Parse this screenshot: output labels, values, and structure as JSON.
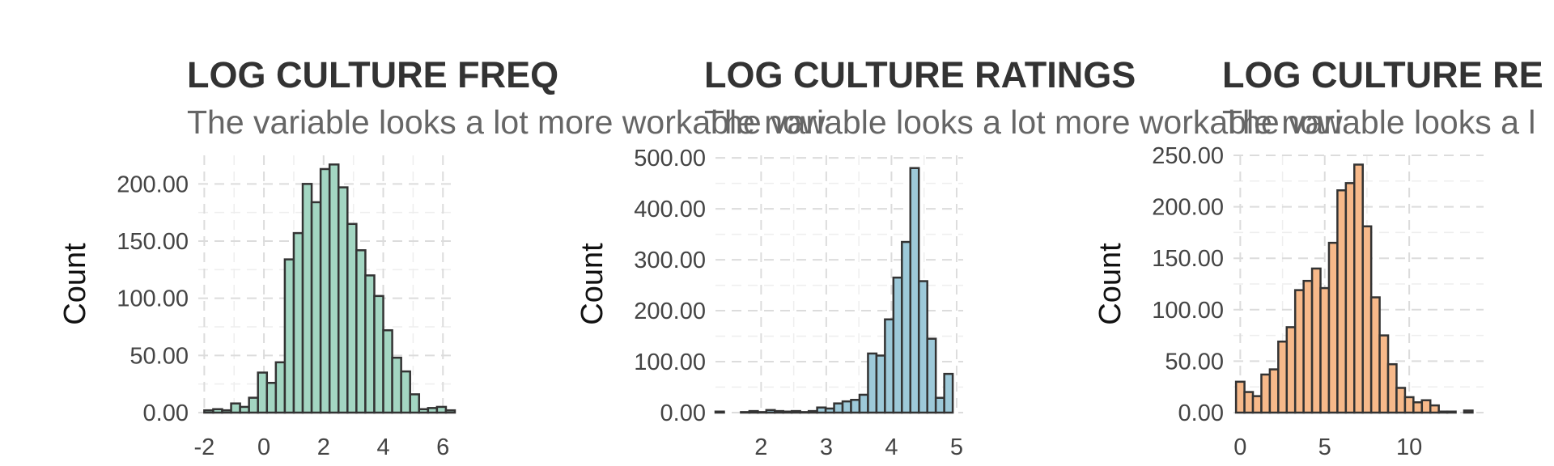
{
  "chart_data": [
    {
      "type": "bar",
      "title": "LOG CULTURE FREQ",
      "subtitle": "The variable looks a lot more workable now",
      "xlabel": "",
      "ylabel": "Count",
      "color": "#a3d6c2",
      "xlim": [
        -2.2,
        6.4
      ],
      "ylim": [
        0,
        225
      ],
      "xticks": [
        "-2",
        "0",
        "2",
        "4",
        "6"
      ],
      "xtick_values": [
        -2,
        0,
        2,
        4,
        6
      ],
      "yticks": [
        "0.00",
        "50.00",
        "100.00",
        "150.00",
        "200.00"
      ],
      "ytick_values": [
        0,
        50,
        100,
        150,
        200
      ],
      "bin_width": 0.3,
      "bin_start": -2.0,
      "values": [
        2,
        3,
        2,
        8,
        5,
        13,
        35,
        26,
        44,
        134,
        157,
        200,
        184,
        213,
        217,
        197,
        165,
        142,
        120,
        102,
        72,
        48,
        36,
        16,
        3,
        4,
        5,
        2
      ]
    },
    {
      "type": "bar",
      "title": "LOG CULTURE RATINGS",
      "subtitle": "The variable looks a lot more workable now",
      "xlabel": "",
      "ylabel": "Count",
      "color": "#9dc9d9",
      "xlim": [
        1.3,
        5.1
      ],
      "ylim": [
        0,
        505
      ],
      "xticks": [
        "2",
        "3",
        "4",
        "5"
      ],
      "xtick_values": [
        2,
        3,
        4,
        5
      ],
      "yticks": [
        "0.00",
        "100.00",
        "200.00",
        "300.00",
        "400.00",
        "500.00"
      ],
      "ytick_values": [
        0,
        100,
        200,
        300,
        400,
        500
      ],
      "bin_width": 0.13,
      "bin_start": 1.3,
      "values": [
        2,
        0,
        0,
        1,
        3,
        1,
        5,
        3,
        2,
        3,
        1,
        3,
        10,
        8,
        18,
        22,
        25,
        35,
        116,
        112,
        183,
        265,
        335,
        480,
        258,
        145,
        29,
        76
      ]
    },
    {
      "type": "bar",
      "title": "LOG CULTURE RE",
      "subtitle": "The variable looks a l",
      "xlabel": "",
      "ylabel": "Count",
      "color": "#f7b98a",
      "xlim": [
        -0.4,
        14.4
      ],
      "ylim": [
        0,
        250
      ],
      "xticks": [
        "0",
        "5",
        "10"
      ],
      "xtick_values": [
        0,
        5,
        10
      ],
      "yticks": [
        "0.00",
        "50.00",
        "100.00",
        "150.00",
        "200.00",
        "250.00"
      ],
      "ytick_values": [
        0,
        50,
        100,
        150,
        200,
        250
      ],
      "bin_width": 0.5,
      "bin_start": -0.25,
      "values": [
        30,
        20,
        16,
        37,
        42,
        69,
        83,
        119,
        128,
        140,
        121,
        165,
        216,
        223,
        241,
        181,
        112,
        75,
        47,
        24,
        15,
        10,
        12,
        7,
        1,
        1,
        0,
        2
      ]
    }
  ]
}
